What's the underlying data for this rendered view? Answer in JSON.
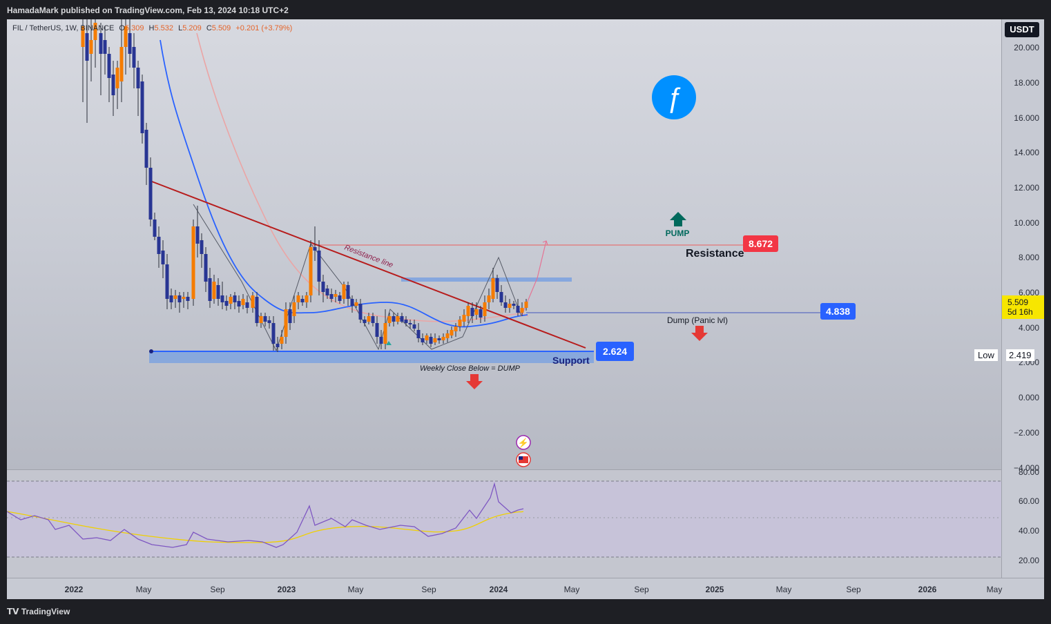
{
  "header": {
    "publisher_line": "HamadaMark published on TradingView.com, Feb 13, 2024 10:18 UTC+2"
  },
  "symbol": {
    "name": "FIL / TetherUS, 1W, BINANCE",
    "o_label": "O",
    "o": "5.309",
    "h_label": "H",
    "h": "5.532",
    "l_label": "L",
    "l": "5.209",
    "c_label": "C",
    "c": "5.509",
    "change": "+0.201 (+3.79%)"
  },
  "currency_button": "USDT",
  "price_axis": [
    "20.000",
    "18.000",
    "16.000",
    "14.000",
    "12.000",
    "10.000",
    "8.000",
    "6.000",
    "4.000",
    "2.000",
    "0.000",
    "−2.000",
    "−4.000"
  ],
  "rsi_axis": [
    "80.00",
    "60.00",
    "40.00",
    "20.00"
  ],
  "time_axis": [
    "2022",
    "May",
    "Sep",
    "2023",
    "May",
    "Sep",
    "2024",
    "May",
    "Sep",
    "2025",
    "May",
    "Sep",
    "2026",
    "May"
  ],
  "current_price": {
    "value": "5.509",
    "countdown": "5d 16h",
    "color": "#f7e600"
  },
  "low_marker": {
    "label": "Low",
    "value": "2.419"
  },
  "levels": {
    "resistance": {
      "value": "8.672",
      "label": "Resistance",
      "color": "#f23645"
    },
    "panic": {
      "value": "4.838",
      "label": "Dump (Panic lvl)",
      "color": "#2962ff"
    },
    "support": {
      "value": "2.624",
      "label": "Support",
      "color": "#2962ff"
    }
  },
  "annotations": {
    "pump": "PUMP",
    "weekly_close": "Weekly Close Below = DUMP",
    "resistance_line": "Resistance line"
  },
  "colors": {
    "up_candle": "#f57c00",
    "down_candle": "#283593",
    "ma_blue": "#2962ff",
    "ma_pink": "#f4a6a6",
    "trendline": "#b71c1c",
    "rsi": "#7e57c2",
    "rsi_ma": "#f0d000",
    "pump_arrow": "#00695c",
    "dump_arrow": "#e53935"
  },
  "icons": {
    "logo": "filecoin-logo-icon",
    "events": [
      "lightning-event-icon",
      "us-flag-event-icon"
    ]
  },
  "footer": {
    "brand": "TradingView"
  }
}
